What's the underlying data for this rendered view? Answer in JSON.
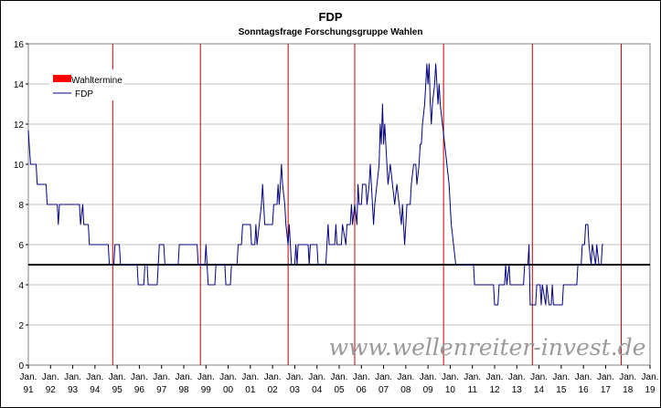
{
  "chart_data": {
    "type": "line",
    "title": "FDP",
    "subtitle": "Sonntagsfrage Forschungsgruppe Wahlen",
    "xlabel": "",
    "ylabel": "",
    "ylim": [
      0,
      16
    ],
    "yticks": [
      0,
      2,
      4,
      6,
      8,
      10,
      12,
      14,
      16
    ],
    "xlim": [
      1991,
      2019
    ],
    "xticks": [
      {
        "year": 1991,
        "line1": "Jan.",
        "line2": "91"
      },
      {
        "year": 1992,
        "line1": "Jan.",
        "line2": "92"
      },
      {
        "year": 1993,
        "line1": "Jan.",
        "line2": "93"
      },
      {
        "year": 1994,
        "line1": "Jan.",
        "line2": "94"
      },
      {
        "year": 1995,
        "line1": "Jan.",
        "line2": "95"
      },
      {
        "year": 1996,
        "line1": "Jan.",
        "line2": "96"
      },
      {
        "year": 1997,
        "line1": "Jan.",
        "line2": "97"
      },
      {
        "year": 1998,
        "line1": "Jan.",
        "line2": "98"
      },
      {
        "year": 1999,
        "line1": "Jan.",
        "line2": "99"
      },
      {
        "year": 2000,
        "line1": "Jan.",
        "line2": "00"
      },
      {
        "year": 2001,
        "line1": "Jan.",
        "line2": "01"
      },
      {
        "year": 2002,
        "line1": "Jan.",
        "line2": "02"
      },
      {
        "year": 2003,
        "line1": "Jan.",
        "line2": "03"
      },
      {
        "year": 2004,
        "line1": "Jan.",
        "line2": "04"
      },
      {
        "year": 2005,
        "line1": "Jan.",
        "line2": "05"
      },
      {
        "year": 2006,
        "line1": "Jan.",
        "line2": "06"
      },
      {
        "year": 2007,
        "line1": "Jan.",
        "line2": "07"
      },
      {
        "year": 2008,
        "line1": "Jan.",
        "line2": "08"
      },
      {
        "year": 2009,
        "line1": "Jan.",
        "line2": "09"
      },
      {
        "year": 2010,
        "line1": "Jan.",
        "line2": "10"
      },
      {
        "year": 2011,
        "line1": "Jan.",
        "line2": "11"
      },
      {
        "year": 2012,
        "line1": "Jan.",
        "line2": "12"
      },
      {
        "year": 2013,
        "line1": "Jan.",
        "line2": "13"
      },
      {
        "year": 2014,
        "line1": "Jan.",
        "line2": "14"
      },
      {
        "year": 2015,
        "line1": "Jan.",
        "line2": "15"
      },
      {
        "year": 2016,
        "line1": "Jan.",
        "line2": "16"
      },
      {
        "year": 2017,
        "line1": "Jan.",
        "line2": "17"
      },
      {
        "year": 2018,
        "line1": "Jan.",
        "line2": "18"
      },
      {
        "year": 2019,
        "line1": "Jan.",
        "line2": "19"
      }
    ],
    "grid": true,
    "legend_position": "top-left",
    "series": [
      {
        "name": "FDP",
        "color": "#000080",
        "points": [
          [
            1991.0,
            11.7
          ],
          [
            1991.05,
            10.8
          ],
          [
            1991.1,
            10
          ],
          [
            1991.35,
            10
          ],
          [
            1991.4,
            9
          ],
          [
            1991.8,
            9
          ],
          [
            1991.85,
            8
          ],
          [
            1992.3,
            8
          ],
          [
            1992.35,
            7
          ],
          [
            1992.4,
            8
          ],
          [
            1993.3,
            8
          ],
          [
            1993.35,
            7
          ],
          [
            1993.45,
            8
          ],
          [
            1993.5,
            7
          ],
          [
            1993.7,
            7
          ],
          [
            1993.75,
            6
          ],
          [
            1994.6,
            6
          ],
          [
            1994.65,
            5
          ],
          [
            1994.85,
            5
          ],
          [
            1994.9,
            6
          ],
          [
            1995.1,
            6
          ],
          [
            1995.15,
            5
          ],
          [
            1995.9,
            5
          ],
          [
            1995.95,
            4
          ],
          [
            1996.2,
            4
          ],
          [
            1996.25,
            5
          ],
          [
            1996.35,
            5
          ],
          [
            1996.4,
            4
          ],
          [
            1996.8,
            4
          ],
          [
            1996.85,
            5
          ],
          [
            1996.9,
            6
          ],
          [
            1997.1,
            6
          ],
          [
            1997.15,
            5
          ],
          [
            1997.75,
            5
          ],
          [
            1997.8,
            6
          ],
          [
            1998.6,
            6
          ],
          [
            1998.65,
            5
          ],
          [
            1998.95,
            5
          ],
          [
            1999.0,
            6
          ],
          [
            1999.05,
            5
          ],
          [
            1999.1,
            4
          ],
          [
            1999.4,
            4
          ],
          [
            1999.45,
            5
          ],
          [
            1999.85,
            5
          ],
          [
            1999.9,
            4
          ],
          [
            2000.1,
            4
          ],
          [
            2000.15,
            5
          ],
          [
            2000.4,
            5
          ],
          [
            2000.45,
            6
          ],
          [
            2000.6,
            6
          ],
          [
            2000.65,
            7
          ],
          [
            2001.0,
            7
          ],
          [
            2001.05,
            6
          ],
          [
            2001.2,
            6
          ],
          [
            2001.25,
            7
          ],
          [
            2001.3,
            6
          ],
          [
            2001.4,
            7
          ],
          [
            2001.5,
            8
          ],
          [
            2001.55,
            9
          ],
          [
            2001.6,
            8
          ],
          [
            2001.65,
            7
          ],
          [
            2002.0,
            7
          ],
          [
            2002.05,
            8
          ],
          [
            2002.2,
            8
          ],
          [
            2002.25,
            9
          ],
          [
            2002.3,
            8
          ],
          [
            2002.4,
            10
          ],
          [
            2002.45,
            9
          ],
          [
            2002.55,
            8
          ],
          [
            2002.6,
            7
          ],
          [
            2002.7,
            6
          ],
          [
            2002.75,
            7
          ],
          [
            2002.8,
            6
          ],
          [
            2002.85,
            5
          ],
          [
            2003.0,
            5
          ],
          [
            2003.05,
            6
          ],
          [
            2003.1,
            5
          ],
          [
            2003.15,
            6
          ],
          [
            2003.6,
            6
          ],
          [
            2003.65,
            5
          ],
          [
            2003.7,
            6
          ],
          [
            2004.0,
            6
          ],
          [
            2004.05,
            5
          ],
          [
            2004.4,
            5
          ],
          [
            2004.45,
            6
          ],
          [
            2004.5,
            7
          ],
          [
            2004.55,
            6
          ],
          [
            2004.8,
            6
          ],
          [
            2004.85,
            7
          ],
          [
            2004.9,
            6
          ],
          [
            2005.1,
            6
          ],
          [
            2005.15,
            7
          ],
          [
            2005.3,
            6
          ],
          [
            2005.35,
            7
          ],
          [
            2005.5,
            7
          ],
          [
            2005.55,
            8
          ],
          [
            2005.6,
            7
          ],
          [
            2005.7,
            8
          ],
          [
            2005.8,
            7
          ],
          [
            2005.85,
            9
          ],
          [
            2005.9,
            8
          ],
          [
            2006.0,
            8
          ],
          [
            2006.05,
            9
          ],
          [
            2006.2,
            9
          ],
          [
            2006.25,
            8
          ],
          [
            2006.35,
            9
          ],
          [
            2006.4,
            10
          ],
          [
            2006.45,
            9
          ],
          [
            2006.55,
            7
          ],
          [
            2006.6,
            8
          ],
          [
            2006.7,
            9
          ],
          [
            2006.8,
            10
          ],
          [
            2006.85,
            12
          ],
          [
            2006.9,
            11
          ],
          [
            2006.95,
            13
          ],
          [
            2007.0,
            11
          ],
          [
            2007.05,
            12
          ],
          [
            2007.15,
            10
          ],
          [
            2007.2,
            9
          ],
          [
            2007.3,
            10
          ],
          [
            2007.4,
            9
          ],
          [
            2007.5,
            8
          ],
          [
            2007.6,
            9
          ],
          [
            2007.7,
            8
          ],
          [
            2007.8,
            7
          ],
          [
            2007.85,
            8
          ],
          [
            2007.9,
            7
          ],
          [
            2007.95,
            6
          ],
          [
            2008.0,
            7
          ],
          [
            2008.05,
            8
          ],
          [
            2008.2,
            8
          ],
          [
            2008.25,
            9
          ],
          [
            2008.35,
            10
          ],
          [
            2008.45,
            10
          ],
          [
            2008.5,
            9
          ],
          [
            2008.6,
            10
          ],
          [
            2008.65,
            11
          ],
          [
            2008.7,
            11
          ],
          [
            2008.75,
            12
          ],
          [
            2008.85,
            13
          ],
          [
            2008.9,
            14
          ],
          [
            2008.95,
            15
          ],
          [
            2009.0,
            14
          ],
          [
            2009.05,
            15
          ],
          [
            2009.1,
            13
          ],
          [
            2009.15,
            12
          ],
          [
            2009.2,
            13
          ],
          [
            2009.3,
            14
          ],
          [
            2009.35,
            15
          ],
          [
            2009.4,
            14
          ],
          [
            2009.45,
            13
          ],
          [
            2009.5,
            14
          ],
          [
            2009.55,
            13
          ],
          [
            2009.65,
            12
          ],
          [
            2009.75,
            11
          ],
          [
            2009.85,
            10
          ],
          [
            2009.95,
            9
          ],
          [
            2010.05,
            7
          ],
          [
            2010.15,
            6
          ],
          [
            2010.25,
            5
          ],
          [
            2011.05,
            5
          ],
          [
            2011.1,
            4
          ],
          [
            2011.95,
            4
          ],
          [
            2012.0,
            3
          ],
          [
            2012.15,
            3
          ],
          [
            2012.2,
            4
          ],
          [
            2012.45,
            4
          ],
          [
            2012.5,
            5
          ],
          [
            2012.55,
            4
          ],
          [
            2012.65,
            5
          ],
          [
            2012.7,
            4
          ],
          [
            2013.3,
            4
          ],
          [
            2013.35,
            5
          ],
          [
            2013.5,
            5
          ],
          [
            2013.55,
            6
          ],
          [
            2013.6,
            3
          ],
          [
            2013.85,
            3
          ],
          [
            2013.9,
            4
          ],
          [
            2014.05,
            4
          ],
          [
            2014.1,
            3
          ],
          [
            2014.15,
            4
          ],
          [
            2014.3,
            3
          ],
          [
            2014.35,
            4
          ],
          [
            2014.45,
            3
          ],
          [
            2014.55,
            3
          ],
          [
            2014.6,
            4
          ],
          [
            2014.65,
            3
          ],
          [
            2015.05,
            3
          ],
          [
            2015.1,
            4
          ],
          [
            2015.7,
            4
          ],
          [
            2015.75,
            5
          ],
          [
            2015.9,
            5
          ],
          [
            2015.95,
            6
          ],
          [
            2016.05,
            6
          ],
          [
            2016.1,
            7
          ],
          [
            2016.2,
            7
          ],
          [
            2016.25,
            6
          ],
          [
            2016.35,
            5
          ],
          [
            2016.4,
            6
          ],
          [
            2016.55,
            5
          ],
          [
            2016.6,
            6
          ],
          [
            2016.7,
            5
          ],
          [
            2016.8,
            5
          ],
          [
            2016.85,
            6
          ],
          [
            2016.9,
            6
          ]
        ]
      }
    ],
    "election_dates": [
      1994.8,
      1998.75,
      2002.7,
      2005.7,
      2009.7,
      2013.7,
      2017.7
    ],
    "threshold": 5,
    "legend": [
      {
        "label": "Wahltermine",
        "color": "#ff0000"
      },
      {
        "label": "FDP",
        "color": "#000080"
      }
    ]
  },
  "watermark": "www.wellenreiter-invest.de",
  "colors": {
    "background": "#ffffff",
    "plot_background": "#ffffff",
    "grid": "#c0c0c0",
    "election_line": "#c00000",
    "threshold_line": "#000000",
    "watermark": "#9a9a9a"
  }
}
